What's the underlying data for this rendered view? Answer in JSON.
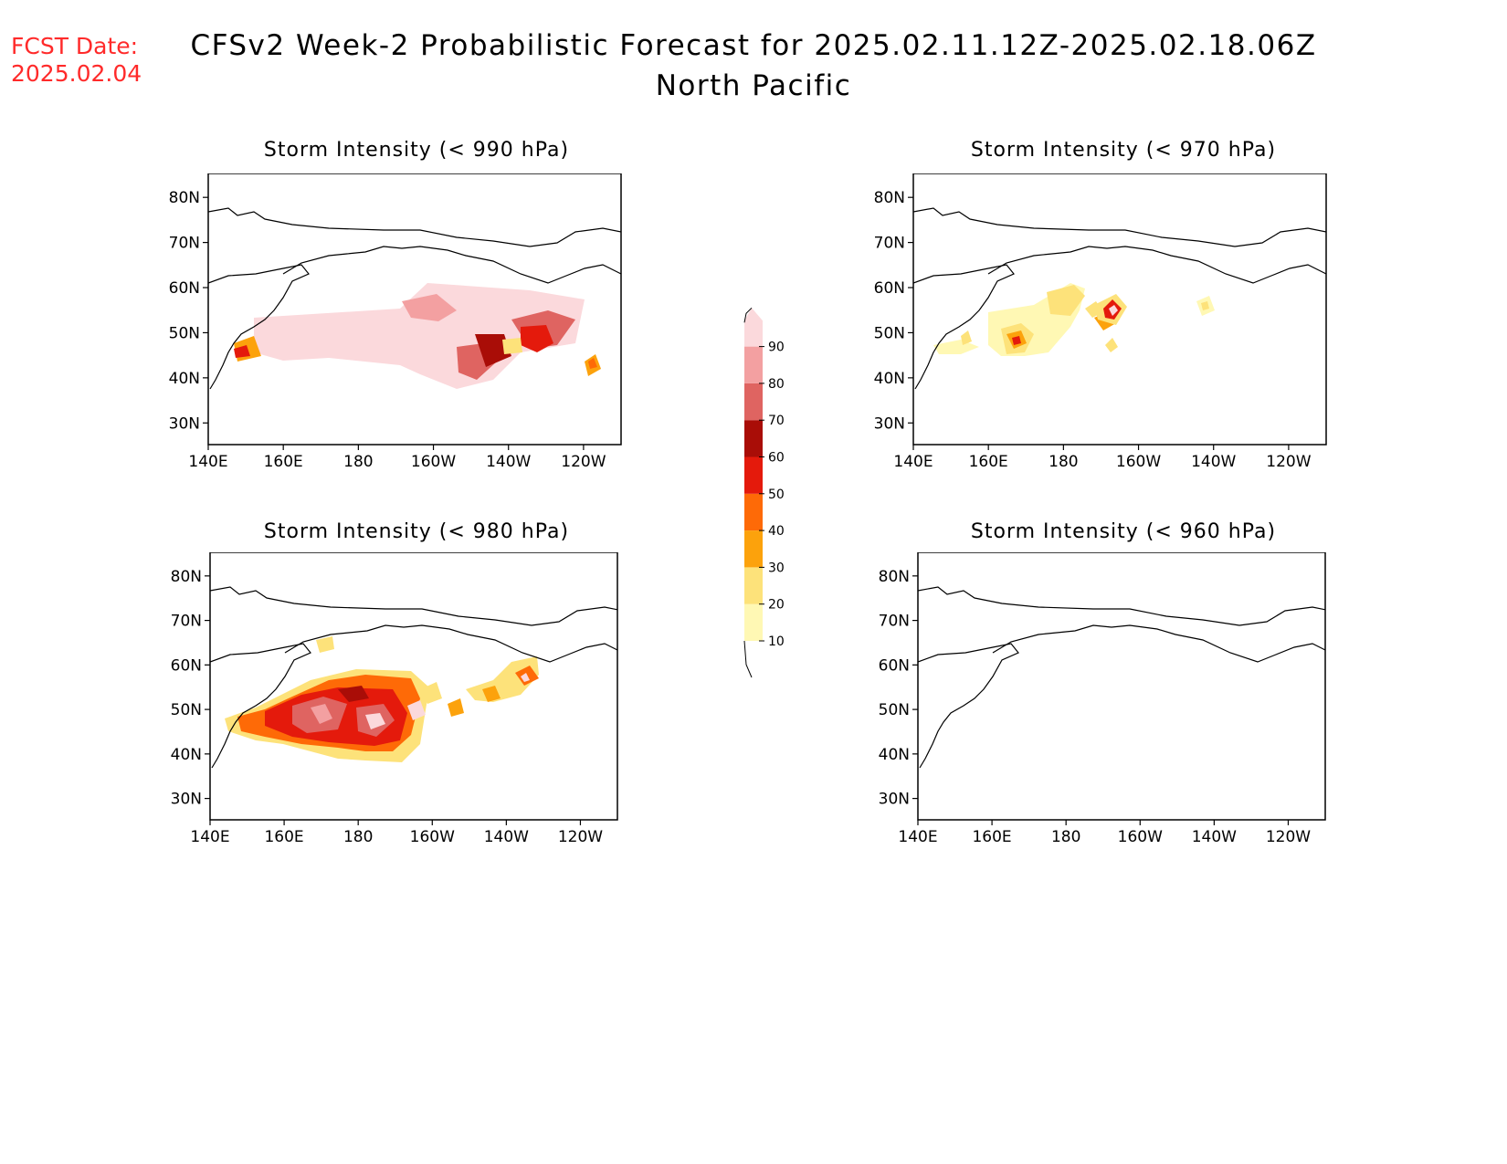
{
  "header": {
    "fcst_label": "FCST Date:",
    "fcst_date": "2025.02.04",
    "title": "CFSv2 Week-2 Probabilistic Forecast for 2025.02.11.12Z-2025.02.18.06Z",
    "region": "North Pacific"
  },
  "axes": {
    "lon_labels": [
      "140E",
      "160E",
      "180",
      "160W",
      "140W",
      "120W"
    ],
    "lat_labels": [
      "80N",
      "70N",
      "60N",
      "50N",
      "40N",
      "30N"
    ]
  },
  "panels": [
    {
      "title": "Storm Intensity (< 990 hPa)"
    },
    {
      "title": "Storm Intensity (< 970 hPa)"
    },
    {
      "title": "Storm Intensity (< 980 hPa)"
    },
    {
      "title": "Storm Intensity (< 960 hPa)"
    }
  ],
  "colorbar": {
    "levels": [
      "10",
      "20",
      "30",
      "40",
      "50",
      "60",
      "70",
      "80",
      "90"
    ],
    "colors": [
      "#fff8b4",
      "#fde27a",
      "#fca20c",
      "#fe6a07",
      "#e41a0c",
      "#a90d07",
      "#df6461",
      "#f3a0a1",
      "#fbd9dc"
    ]
  }
}
